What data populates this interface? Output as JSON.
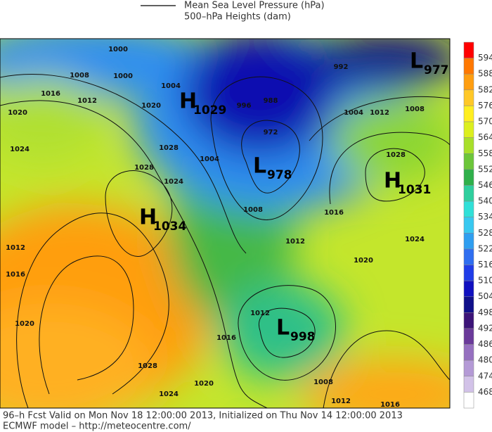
{
  "legend": {
    "mslp": "Mean Sea Level Pressure (hPa)",
    "heights": "500–hPa Heights (dam)"
  },
  "colorbar": {
    "labels": [
      594,
      588,
      582,
      576,
      570,
      564,
      558,
      552,
      546,
      540,
      534,
      528,
      522,
      516,
      510,
      504,
      498,
      492,
      486,
      480,
      474,
      468
    ],
    "colors": [
      "#ff0000",
      "#ff7800",
      "#ff9e10",
      "#ffc828",
      "#ffee20",
      "#dcef1e",
      "#a8df2a",
      "#6cc63a",
      "#2fb04a",
      "#2fcf9e",
      "#30e0d8",
      "#38c8f0",
      "#2f9ef0",
      "#2f6ef0",
      "#1f3ce8",
      "#1010c0",
      "#10108a",
      "#3c1478",
      "#6a3a9a",
      "#9670c0",
      "#b49ad6",
      "#d2c2e8",
      "#ffffff"
    ]
  },
  "centers": [
    {
      "letter": "H",
      "value": "1029"
    },
    {
      "letter": "L",
      "value": "978"
    },
    {
      "letter": "H",
      "value": "1031"
    },
    {
      "letter": "H",
      "value": "1034"
    },
    {
      "letter": "L",
      "value": "998"
    },
    {
      "letter": "L",
      "value": "977"
    }
  ],
  "isobar_labels": [
    "1000",
    "1008",
    "1000",
    "1004",
    "1016",
    "1012",
    "1020",
    "1020",
    "1024",
    "1028",
    "1028",
    "1024",
    "1004",
    "1008",
    "1012",
    "1016",
    "1020",
    "1024",
    "1028",
    "1012",
    "1004",
    "1008",
    "1012",
    "1016",
    "1020",
    "1028",
    "1024",
    "1020",
    "1016",
    "1012",
    "1008",
    "1016",
    "1012",
    "992",
    "988",
    "972",
    "996"
  ],
  "footer": {
    "line1": "96–h Fcst Valid on Mon Nov 18 12:00:00 2013, Initialized on Thu Nov 14 12:00:00 2013",
    "line2": "ECMWF model – http://meteocentre.com/"
  }
}
